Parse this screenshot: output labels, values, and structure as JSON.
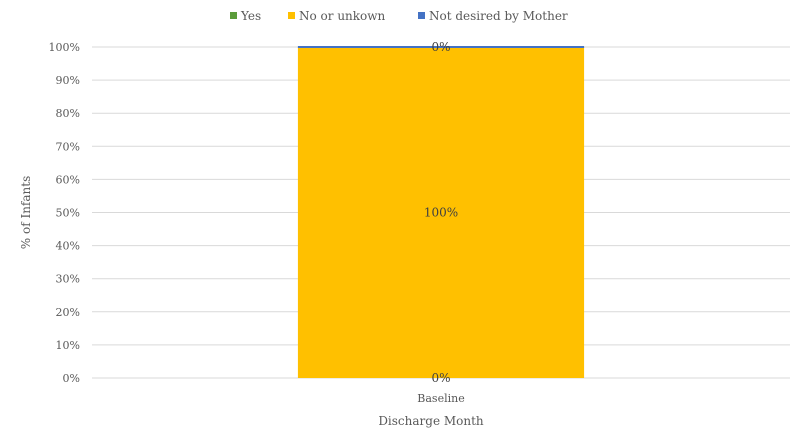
{
  "chart_data": {
    "type": "bar",
    "stacked": true,
    "percent": true,
    "categories": [
      "Baseline"
    ],
    "series": [
      {
        "name": "Yes",
        "values": [
          0
        ],
        "color": "#5b9c3a",
        "labels": [
          "0%"
        ]
      },
      {
        "name": "No or unkown",
        "values": [
          100
        ],
        "color": "#ffc000",
        "labels": [
          "100%"
        ]
      },
      {
        "name": "Not desired by Mother",
        "values": [
          0
        ],
        "color": "#4472c4",
        "labels": [
          "0%"
        ]
      }
    ],
    "title": "",
    "xlabel": "Discharge Month",
    "ylabel": "% of Infants",
    "ylim": [
      0,
      100
    ],
    "yticks": [
      "0%",
      "10%",
      "20%",
      "30%",
      "40%",
      "50%",
      "60%",
      "70%",
      "80%",
      "90%",
      "100%"
    ],
    "grid": true,
    "legend_position": "top"
  }
}
